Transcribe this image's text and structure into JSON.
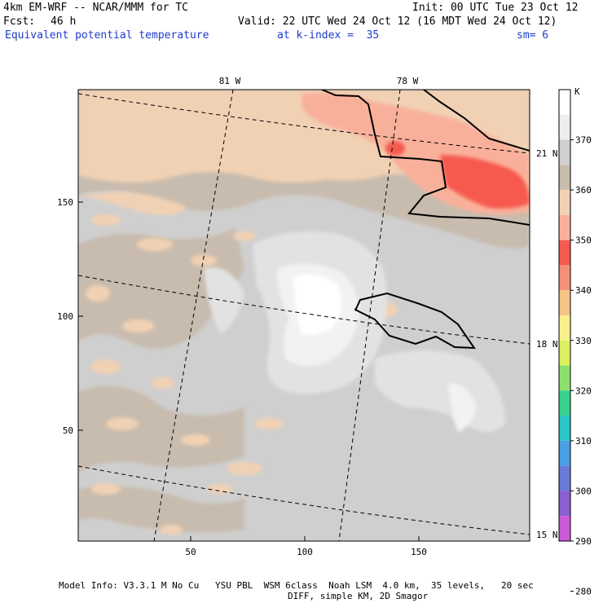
{
  "header": {
    "model": "4km EM-WRF -- NCAR/MMM for TC",
    "forecast_label": "Fcst:",
    "forecast_value": "46 h",
    "init": "Init: 00 UTC Tue 23 Oct 12",
    "valid": "Valid: 22 UTC Wed 24 Oct 12 (16 MDT Wed 24 Oct 12)",
    "field": "Equivalent potential temperature",
    "level": "at k-index =  35",
    "smoothing": "sm= 6"
  },
  "map": {
    "x_ticks": [
      "50",
      "100",
      "150"
    ],
    "y_ticks": [
      "50",
      "100",
      "150"
    ],
    "lon_labels": [
      "81 W",
      "78 W"
    ],
    "lat_labels": [
      "21 N",
      "18 N",
      "15 N"
    ]
  },
  "colorbar": {
    "unit": "K",
    "labels": [
      "370",
      "360",
      "350",
      "340",
      "330",
      "320",
      "310",
      "300",
      "290",
      "280"
    ],
    "colors": [
      "#ffffff",
      "#eeeeee",
      "#cfcfcf",
      "#c8bcae",
      "#f1d1b4",
      "#f9b09a",
      "#f65a50",
      "#f4907a",
      "#f6c485",
      "#f8f08a",
      "#dcf060",
      "#8ee06e",
      "#36d38e",
      "#2ac6c6",
      "#4a9ee4",
      "#6a7ad8",
      "#8a60d0",
      "#cc5ad8"
    ]
  },
  "footer": {
    "line1": "Model Info: V3.3.1 M No Cu   YSU PBL  WSM 6class  Noah LSM  4.0 km,  35 levels,   20 sec",
    "line2": "DIFF, simple KM, 2D Smagor"
  }
}
